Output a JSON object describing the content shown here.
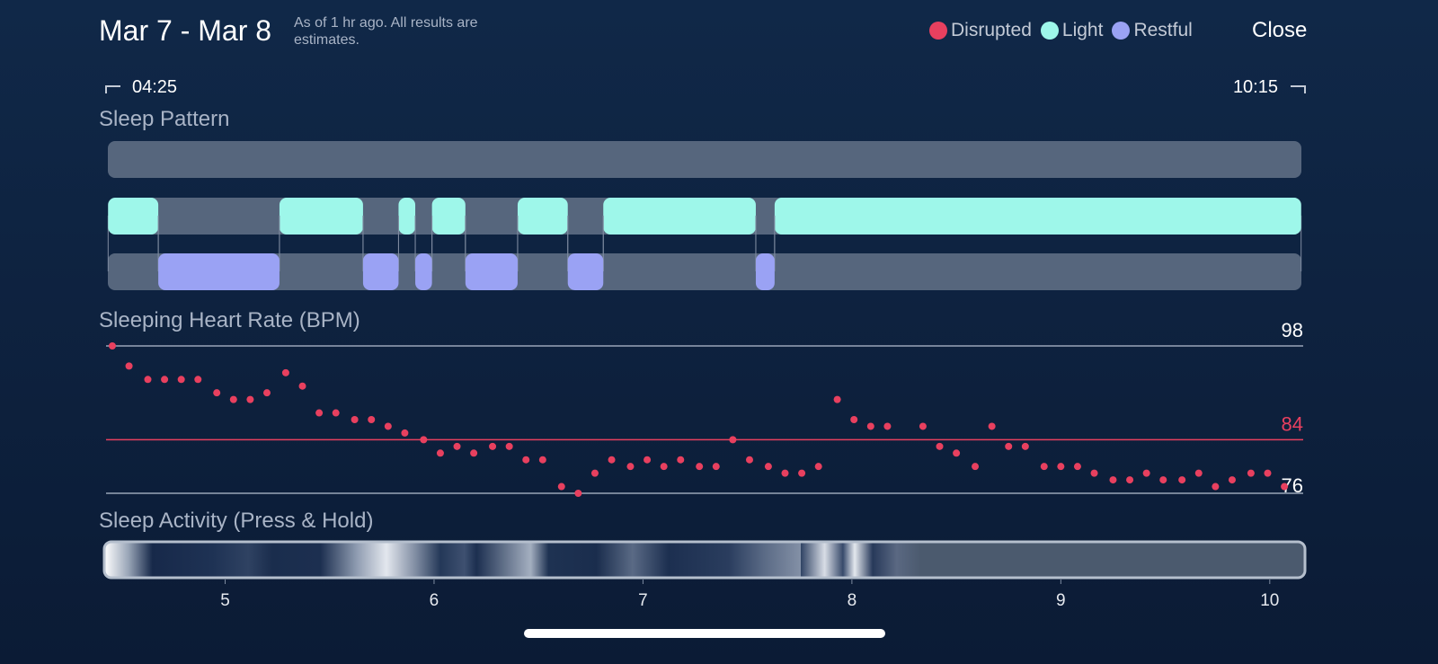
{
  "header": {
    "title": "Mar 7 - Mar 8",
    "note": "As of 1 hr ago. All results are estimates.",
    "close": "Close"
  },
  "range": {
    "start": "04:25",
    "end": "10:15"
  },
  "chart_data": [
    {
      "type": "timeline",
      "title": "Sleep Pattern",
      "xlim": [
        4.43,
        10.16
      ],
      "track_color": "#56667d",
      "series": [
        {
          "name": "Disrupted",
          "color": "#e8405f",
          "segments": []
        },
        {
          "name": "Light",
          "color": "#9ef7ea",
          "segments": [
            [
              4.44,
              4.68
            ],
            [
              5.26,
              5.66
            ],
            [
              5.83,
              5.91
            ],
            [
              5.99,
              6.15
            ],
            [
              6.4,
              6.64
            ],
            [
              6.81,
              7.54
            ],
            [
              7.63,
              10.15
            ]
          ]
        },
        {
          "name": "Restful",
          "color": "#9aa2f4",
          "segments": [
            [
              4.68,
              5.26
            ],
            [
              5.66,
              5.83
            ],
            [
              5.91,
              5.99
            ],
            [
              6.15,
              6.4
            ],
            [
              6.64,
              6.81
            ],
            [
              7.54,
              7.63
            ]
          ]
        }
      ]
    },
    {
      "type": "scatter",
      "title": "Sleeping Heart Rate (BPM)",
      "xlim": [
        4.43,
        10.16
      ],
      "ylim": [
        76,
        98
      ],
      "yticks": [
        98,
        84,
        76
      ],
      "tick_colors": [
        "#9aa5b8",
        "#e8405f",
        "#9aa5b8"
      ],
      "label_colors": [
        "#ffffff",
        "#e8405f",
        "#ffffff"
      ],
      "color": "#e8405f",
      "x": [
        4.46,
        4.54,
        4.63,
        4.71,
        4.79,
        4.87,
        4.96,
        5.04,
        5.12,
        5.2,
        5.29,
        5.37,
        5.45,
        5.53,
        5.62,
        5.7,
        5.78,
        5.86,
        5.95,
        6.03,
        6.11,
        6.19,
        6.28,
        6.36,
        6.44,
        6.52,
        6.61,
        6.69,
        6.77,
        6.85,
        6.94,
        7.02,
        7.1,
        7.18,
        7.27,
        7.35,
        7.43,
        7.51,
        7.6,
        7.68,
        7.76,
        7.84,
        7.93,
        8.01,
        8.09,
        8.17,
        8.34,
        8.42,
        8.5,
        8.59,
        8.67,
        8.75,
        8.83,
        8.92,
        9.0,
        9.08,
        9.16,
        9.25,
        9.33,
        9.41,
        9.49,
        9.58,
        9.66,
        9.74,
        9.82,
        9.91,
        9.99,
        10.07
      ],
      "values": [
        98,
        95,
        93,
        93,
        93,
        93,
        91,
        90,
        90,
        91,
        94,
        92,
        88,
        88,
        87,
        87,
        86,
        85,
        84,
        82,
        83,
        82,
        83,
        83,
        81,
        81,
        77,
        76,
        79,
        81,
        80,
        81,
        80,
        81,
        80,
        80,
        84,
        81,
        80,
        79,
        79,
        80,
        90,
        87,
        86,
        86,
        86,
        83,
        82,
        80,
        86,
        83,
        83,
        80,
        80,
        80,
        79,
        78,
        78,
        79,
        78,
        78,
        79,
        77,
        78,
        79,
        79,
        77
      ]
    },
    {
      "type": "activity",
      "title": "Sleep Activity (Press & Hold)",
      "xlim": [
        4.43,
        10.16
      ],
      "xticks": [
        5,
        6,
        7,
        8,
        9,
        10
      ]
    }
  ]
}
